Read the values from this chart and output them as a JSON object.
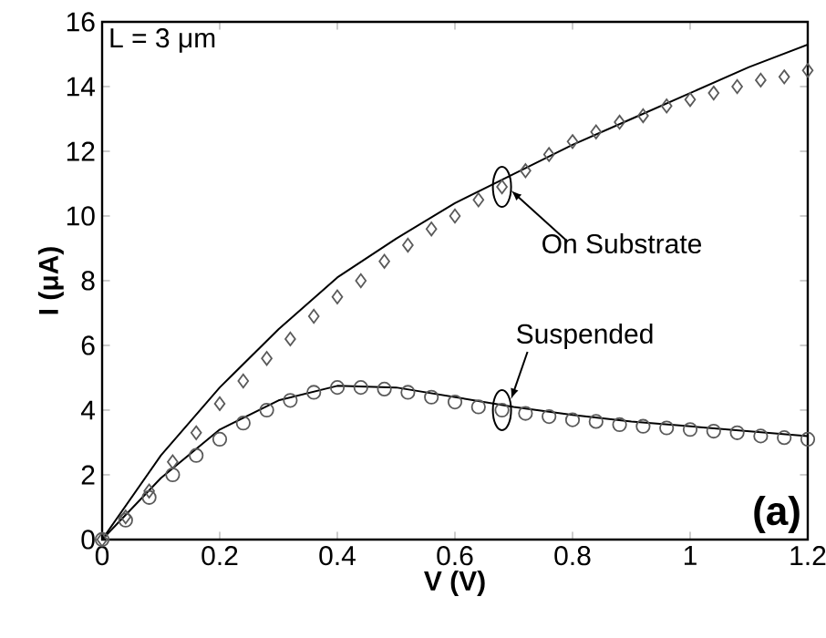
{
  "chart_data": {
    "type": "line",
    "xlabel": "V (V)",
    "ylabel": "I (μA)",
    "annotations": [
      "L = 3 μm",
      "(a)",
      {
        "text": "On Substrate",
        "x": 0.68,
        "y": 10.9
      },
      {
        "text": "Suspended",
        "x": 0.68,
        "y": 4.0
      }
    ],
    "xlim": [
      0,
      1.2
    ],
    "ylim": [
      0,
      16
    ],
    "xticks": [
      0,
      0.2,
      0.4,
      0.6,
      0.8,
      1,
      1.2
    ],
    "yticks": [
      0,
      2,
      4,
      6,
      8,
      10,
      12,
      14,
      16
    ],
    "series": [
      {
        "type": "scatter",
        "marker": "diamond",
        "color": "#5a5a5a",
        "x": [
          0,
          0.04,
          0.08,
          0.12,
          0.16,
          0.2,
          0.24,
          0.28,
          0.32,
          0.36,
          0.4,
          0.44,
          0.48,
          0.52,
          0.56,
          0.6,
          0.64,
          0.68,
          0.72,
          0.76,
          0.8,
          0.84,
          0.88,
          0.92,
          0.96,
          1.0,
          1.04,
          1.08,
          1.12,
          1.16,
          1.2
        ],
        "values": [
          0,
          0.7,
          1.5,
          2.4,
          3.3,
          4.2,
          4.9,
          5.6,
          6.2,
          6.9,
          7.5,
          8.0,
          8.6,
          9.1,
          9.6,
          10.0,
          10.5,
          10.9,
          11.4,
          11.9,
          12.3,
          12.6,
          12.9,
          13.1,
          13.4,
          13.6,
          13.8,
          14.0,
          14.2,
          14.3,
          14.5
        ]
      },
      {
        "type": "scatter",
        "marker": "circle",
        "color": "#5a5a5a",
        "x": [
          0,
          0.04,
          0.08,
          0.12,
          0.16,
          0.2,
          0.24,
          0.28,
          0.32,
          0.36,
          0.4,
          0.44,
          0.48,
          0.52,
          0.56,
          0.6,
          0.64,
          0.68,
          0.72,
          0.76,
          0.8,
          0.84,
          0.88,
          0.92,
          0.96,
          1.0,
          1.04,
          1.08,
          1.12,
          1.16,
          1.2
        ],
        "values": [
          0,
          0.6,
          1.3,
          2.0,
          2.6,
          3.1,
          3.6,
          4.0,
          4.3,
          4.55,
          4.7,
          4.7,
          4.65,
          4.55,
          4.4,
          4.25,
          4.1,
          4.0,
          3.9,
          3.8,
          3.7,
          3.65,
          3.55,
          3.5,
          3.45,
          3.4,
          3.35,
          3.3,
          3.2,
          3.15,
          3.1
        ]
      },
      {
        "marker": "none",
        "line_style": "solid",
        "color": "#000000",
        "x": [
          0,
          0.1,
          0.2,
          0.3,
          0.4,
          0.5,
          0.6,
          0.7,
          0.8,
          0.9,
          1.0,
          1.1,
          1.2
        ],
        "values": [
          0,
          2.6,
          4.7,
          6.5,
          8.1,
          9.3,
          10.4,
          11.3,
          12.2,
          13.0,
          13.8,
          14.6,
          15.3
        ]
      },
      {
        "marker": "none",
        "line_style": "solid",
        "color": "#000000",
        "x": [
          0,
          0.1,
          0.2,
          0.3,
          0.4,
          0.5,
          0.6,
          0.7,
          0.8,
          0.9,
          1.0,
          1.1,
          1.2
        ],
        "values": [
          0,
          1.9,
          3.4,
          4.3,
          4.75,
          4.7,
          4.4,
          4.1,
          3.85,
          3.65,
          3.5,
          3.35,
          3.2
        ]
      }
    ]
  }
}
